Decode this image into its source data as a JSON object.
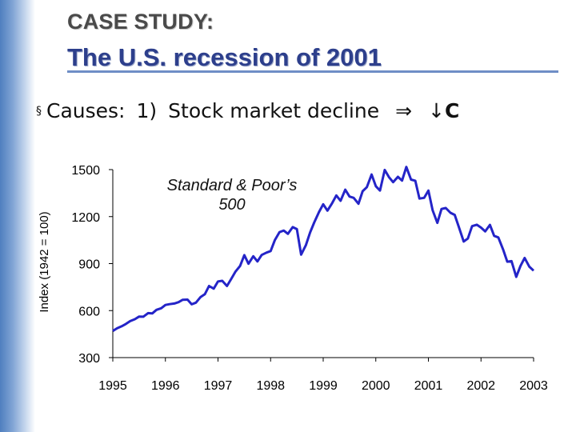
{
  "slide": {
    "kicker": "CASE STUDY:",
    "title": "The U.S. recession of 2001",
    "bullet": {
      "mark": "§",
      "label": "Causes:",
      "item": "1)",
      "text": "Stock market decline",
      "implies": "⇒",
      "arrow": "↓",
      "var": "C"
    }
  },
  "colors": {
    "series": "#2424c8",
    "title": "#2d3f8c",
    "accent": "#6f8ec6"
  },
  "chart_data": {
    "type": "line",
    "title": "",
    "annotation_line1": "Standard & Poor’s",
    "annotation_line2": "500",
    "xlabel": "",
    "ylabel": "Index (1942 = 100)",
    "xlim": [
      1995,
      2003
    ],
    "ylim": [
      300,
      1500
    ],
    "y_ticks": [
      1500,
      1200,
      900,
      600,
      300
    ],
    "x_ticks": [
      1995,
      1996,
      1997,
      1998,
      1999,
      2000,
      2001,
      2002,
      2003
    ],
    "series": [
      {
        "name": "Standard & Poor's 500",
        "x": [
          1995.0,
          1995.08,
          1995.17,
          1995.25,
          1995.33,
          1995.42,
          1995.5,
          1995.58,
          1995.67,
          1995.75,
          1995.83,
          1995.92,
          1996.0,
          1996.08,
          1996.17,
          1996.25,
          1996.33,
          1996.42,
          1996.5,
          1996.58,
          1996.67,
          1996.75,
          1996.83,
          1996.92,
          1997.0,
          1997.08,
          1997.17,
          1997.25,
          1997.33,
          1997.42,
          1997.5,
          1997.58,
          1997.67,
          1997.75,
          1997.83,
          1997.92,
          1998.0,
          1998.08,
          1998.17,
          1998.25,
          1998.33,
          1998.42,
          1998.5,
          1998.58,
          1998.67,
          1998.75,
          1998.83,
          1998.92,
          1999.0,
          1999.08,
          1999.17,
          1999.25,
          1999.33,
          1999.42,
          1999.5,
          1999.58,
          1999.67,
          1999.75,
          1999.83,
          1999.92,
          2000.0,
          2000.08,
          2000.17,
          2000.25,
          2000.33,
          2000.42,
          2000.5,
          2000.58,
          2000.67,
          2000.75,
          2000.83,
          2000.92,
          2001.0,
          2001.08,
          2001.17,
          2001.25,
          2001.33,
          2001.42,
          2001.5,
          2001.58,
          2001.67,
          2001.75,
          2001.83,
          2001.92,
          2002.0,
          2002.08,
          2002.17,
          2002.25,
          2002.33,
          2002.42,
          2002.5,
          2002.58,
          2002.67,
          2002.75,
          2002.83,
          2002.92,
          2003.0
        ],
        "y": [
          470,
          487,
          500,
          515,
          533,
          545,
          562,
          561,
          584,
          582,
          605,
          615,
          636,
          641,
          645,
          654,
          669,
          670,
          640,
          651,
          687,
          705,
          757,
          740,
          786,
          790,
          757,
          801,
          848,
          885,
          954,
          899,
          947,
          914,
          955,
          970,
          980,
          1049,
          1101,
          1111,
          1090,
          1133,
          1120,
          957,
          1017,
          1098,
          1163,
          1229,
          1279,
          1238,
          1286,
          1335,
          1301,
          1372,
          1328,
          1320,
          1282,
          1362,
          1388,
          1469,
          1394,
          1366,
          1498,
          1452,
          1420,
          1454,
          1430,
          1517,
          1436,
          1429,
          1315,
          1320,
          1366,
          1240,
          1160,
          1249,
          1255,
          1224,
          1211,
          1133,
          1041,
          1060,
          1139,
          1148,
          1130,
          1106,
          1147,
          1077,
          1067,
          990,
          912,
          916,
          815,
          885,
          936,
          880,
          855
        ]
      }
    ]
  }
}
